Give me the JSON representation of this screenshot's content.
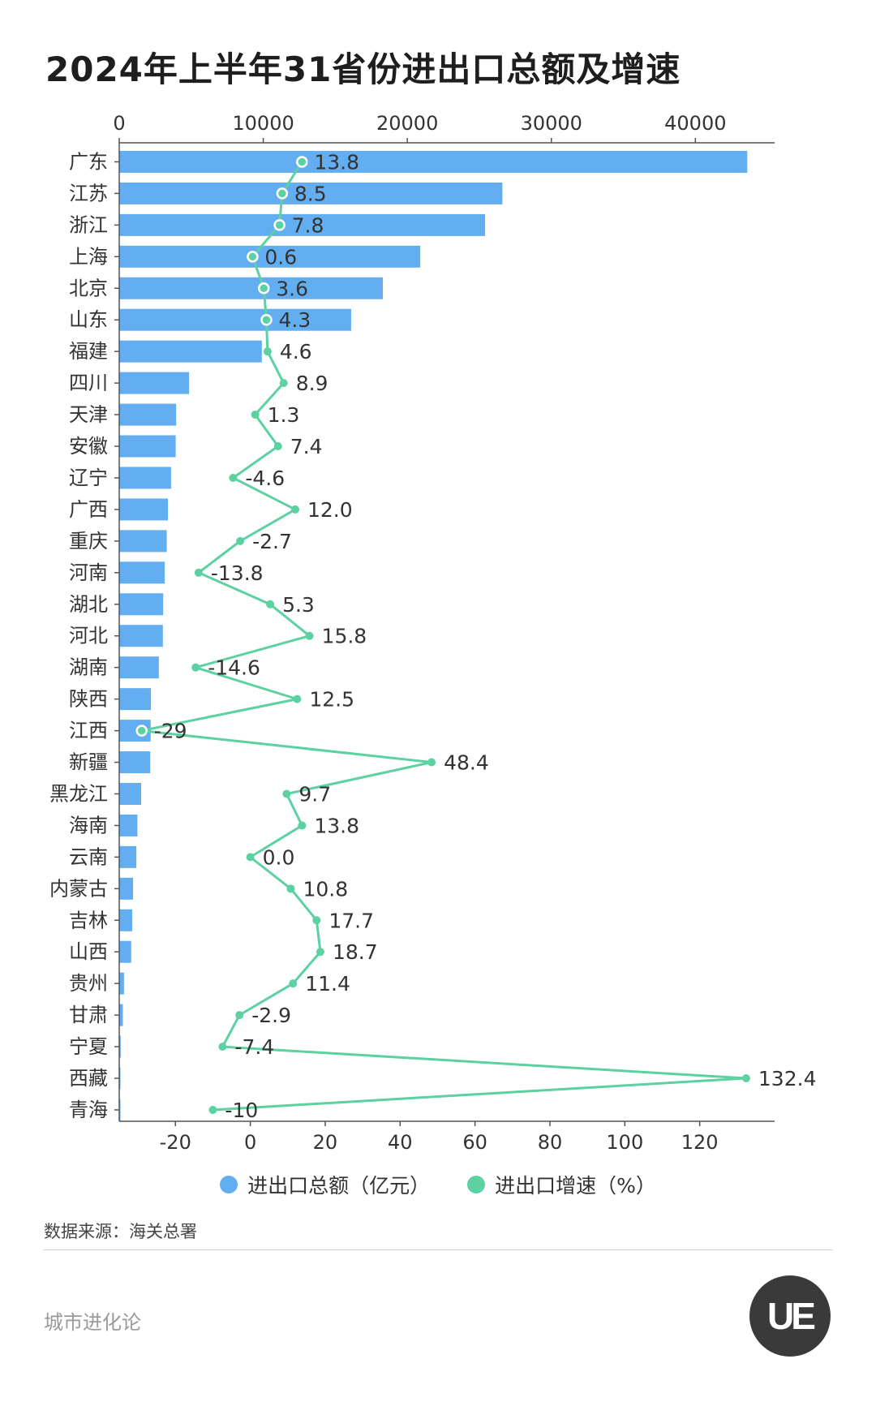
{
  "title": "2024年上半年31省份进出口总额及增速",
  "legend": {
    "total_label": "进出口总额（亿元）",
    "growth_label": "进出口增速（%）"
  },
  "source": "数据来源：海关总署",
  "brand": "城市进化论",
  "logo_text": "UE",
  "colors": {
    "bar": "#62aef1",
    "line": "#5cd1a1"
  },
  "chart_data": {
    "type": "bar",
    "orientation": "horizontal",
    "title": "2024年上半年31省份进出口总额及增速",
    "categories": [
      "广东",
      "江苏",
      "浙江",
      "上海",
      "北京",
      "山东",
      "福建",
      "四川",
      "天津",
      "安徽",
      "辽宁",
      "广西",
      "重庆",
      "河南",
      "湖北",
      "河北",
      "湖南",
      "陕西",
      "江西",
      "新疆",
      "黑龙江",
      "海南",
      "云南",
      "内蒙古",
      "吉林",
      "山西",
      "贵州",
      "甘肃",
      "宁夏",
      "西藏",
      "青海"
    ],
    "top_axis": {
      "ticks": [
        0,
        10000,
        20000,
        30000,
        40000
      ],
      "range": [
        0,
        45500
      ]
    },
    "bottom_axis": {
      "ticks": [
        -20,
        0,
        20,
        40,
        60,
        80,
        100,
        120
      ],
      "range": [
        -35,
        140
      ]
    },
    "series": [
      {
        "name": "进出口总额（亿元）",
        "type": "bar",
        "axis": "top",
        "values": [
          43600,
          26600,
          25400,
          20900,
          18300,
          16100,
          9900,
          4850,
          3950,
          3920,
          3600,
          3380,
          3300,
          3160,
          3050,
          3030,
          2750,
          2200,
          2180,
          2150,
          1520,
          1260,
          1190,
          960,
          900,
          830,
          330,
          250,
          100,
          50,
          40
        ]
      },
      {
        "name": "进出口增速（%）",
        "type": "line",
        "axis": "bottom",
        "values": [
          13.8,
          8.5,
          7.8,
          0.6,
          3.6,
          4.3,
          4.6,
          8.9,
          1.3,
          7.4,
          -4.6,
          12.0,
          -2.7,
          -13.8,
          5.3,
          15.8,
          -14.6,
          12.5,
          -29,
          48.4,
          9.7,
          13.8,
          0.0,
          10.8,
          17.7,
          18.7,
          11.4,
          -2.9,
          -7.4,
          132.4,
          -10
        ],
        "labels": [
          "13.8",
          "8.5",
          "7.8",
          "0.6",
          "3.6",
          "4.3",
          "4.6",
          "8.9",
          "1.3",
          "7.4",
          "-4.6",
          "12.0",
          "-2.7",
          "-13.8",
          "5.3",
          "15.8",
          "-14.6",
          "12.5",
          "-29",
          "48.4",
          "9.7",
          "13.8",
          "0.0",
          "10.8",
          "17.7",
          "18.7",
          "11.4",
          "-2.9",
          "-7.4",
          "132.4",
          "-10"
        ]
      }
    ]
  }
}
